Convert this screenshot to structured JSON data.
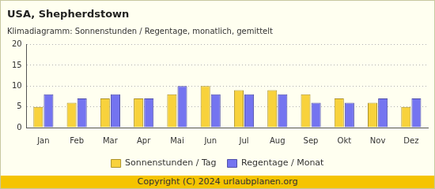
{
  "chart_data": {
    "type": "bar",
    "title": "USA, Shepherdstown",
    "subtitle": "Klimadiagramm: Sonnenstunden / Regentage, monatlich, gemittelt",
    "categories": [
      "Jan",
      "Feb",
      "Mar",
      "Apr",
      "Mai",
      "Jun",
      "Jul",
      "Aug",
      "Sep",
      "Okt",
      "Nov",
      "Dez"
    ],
    "series": [
      {
        "name": "Sonnenstunden / Tag",
        "color": "#f8d23c",
        "values": [
          5,
          6,
          7,
          7,
          8,
          10,
          9,
          9,
          8,
          7,
          6,
          5
        ]
      },
      {
        "name": "Regentage / Monat",
        "color": "#7474f0",
        "values": [
          8,
          7,
          8,
          7,
          10,
          8,
          8,
          8,
          6,
          6,
          7,
          7
        ]
      }
    ],
    "ylim": [
      0,
      20
    ],
    "yticks": [
      0,
      5,
      10,
      15,
      20
    ],
    "grid": true,
    "legend": "bottom",
    "footer": "Copyright (C) 2024 urlaubplanen.org"
  }
}
